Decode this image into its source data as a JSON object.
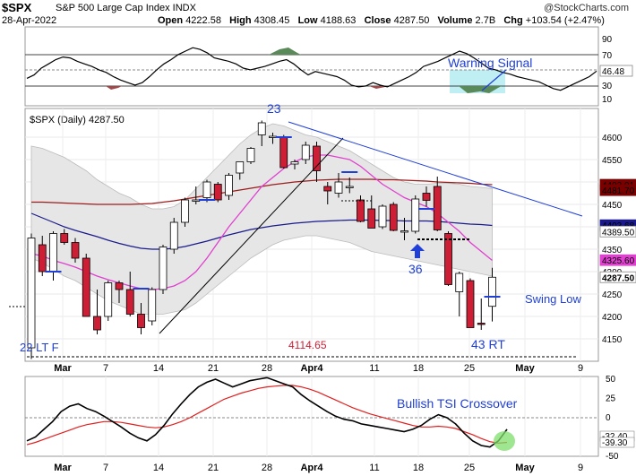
{
  "header": {
    "symbol": "$SPX",
    "name": "S&P 500 Large Cap Index INDX",
    "date": "28-Apr-2022",
    "open_label": "Open",
    "open": "4222.58",
    "high_label": "High",
    "high": "4308.45",
    "low_label": "Low",
    "low": "4188.63",
    "close_label": "Close",
    "close": "4287.50",
    "volume_label": "Volume",
    "volume": "2.7B",
    "chg_label": "Chg",
    "chg": "+103.54 (+2.47%)",
    "brand": "@StockCharts.com"
  },
  "chart_data": {
    "type": "candlestick",
    "title": "$SPX (Daily) 4287.50",
    "x_dates": [
      "Feb 28",
      "Mar 1",
      "Mar 2",
      "Mar 3",
      "Mar 4",
      "Mar 7",
      "Mar 8",
      "Mar 9",
      "Mar 10",
      "Mar 11",
      "Mar 14",
      "Mar 15",
      "Mar 16",
      "Mar 17",
      "Mar 18",
      "Mar 21",
      "Mar 22",
      "Mar 23",
      "Mar 24",
      "Mar 25",
      "Mar 28",
      "Mar 29",
      "Mar 30",
      "Mar 31",
      "Apr 1",
      "Apr 4",
      "Apr 5",
      "Apr 6",
      "Apr 7",
      "Apr 8",
      "Apr 11",
      "Apr 12",
      "Apr 13",
      "Apr 14",
      "Apr 18",
      "Apr 19",
      "Apr 20",
      "Apr 21",
      "Apr 22",
      "Apr 25",
      "Apr 26",
      "Apr 27",
      "Apr 28"
    ],
    "candles": [
      {
        "o": 4130,
        "h": 4385,
        "l": 4105,
        "c": 4375
      },
      {
        "o": 4360,
        "h": 4380,
        "l": 4290,
        "c": 4300
      },
      {
        "o": 4300,
        "h": 4390,
        "l": 4280,
        "c": 4385
      },
      {
        "o": 4385,
        "h": 4395,
        "l": 4360,
        "c": 4365
      },
      {
        "o": 4365,
        "h": 4375,
        "l": 4320,
        "c": 4330
      },
      {
        "o": 4330,
        "h": 4340,
        "l": 4200,
        "c": 4200
      },
      {
        "o": 4200,
        "h": 4260,
        "l": 4160,
        "c": 4170
      },
      {
        "o": 4200,
        "h": 4280,
        "l": 4190,
        "c": 4275
      },
      {
        "o": 4275,
        "h": 4280,
        "l": 4230,
        "c": 4260
      },
      {
        "o": 4260,
        "h": 4300,
        "l": 4200,
        "c": 4205
      },
      {
        "o": 4205,
        "h": 4230,
        "l": 4160,
        "c": 4175
      },
      {
        "o": 4190,
        "h": 4265,
        "l": 4180,
        "c": 4260
      },
      {
        "o": 4260,
        "h": 4360,
        "l": 4250,
        "c": 4355
      },
      {
        "o": 4350,
        "h": 4420,
        "l": 4340,
        "c": 4410
      },
      {
        "o": 4410,
        "h": 4465,
        "l": 4400,
        "c": 4460
      },
      {
        "o": 4460,
        "h": 4490,
        "l": 4450,
        "c": 4460
      },
      {
        "o": 4465,
        "h": 4505,
        "l": 4455,
        "c": 4500
      },
      {
        "o": 4495,
        "h": 4500,
        "l": 4455,
        "c": 4460
      },
      {
        "o": 4470,
        "h": 4520,
        "l": 4460,
        "c": 4515
      },
      {
        "o": 4520,
        "h": 4545,
        "l": 4505,
        "c": 4545
      },
      {
        "o": 4545,
        "h": 4578,
        "l": 4540,
        "c": 4575
      },
      {
        "o": 4605,
        "h": 4637,
        "l": 4580,
        "c": 4632
      },
      {
        "o": 4600,
        "h": 4610,
        "l": 4585,
        "c": 4602
      },
      {
        "o": 4600,
        "h": 4605,
        "l": 4530,
        "c": 4532
      },
      {
        "o": 4540,
        "h": 4550,
        "l": 4528,
        "c": 4545
      },
      {
        "o": 4550,
        "h": 4590,
        "l": 4540,
        "c": 4582
      },
      {
        "o": 4580,
        "h": 4590,
        "l": 4500,
        "c": 4525
      },
      {
        "o": 4490,
        "h": 4500,
        "l": 4450,
        "c": 4480
      },
      {
        "o": 4475,
        "h": 4520,
        "l": 4465,
        "c": 4500
      },
      {
        "o": 4490,
        "h": 4510,
        "l": 4475,
        "c": 4490
      },
      {
        "o": 4460,
        "h": 4470,
        "l": 4410,
        "c": 4412
      },
      {
        "o": 4440,
        "h": 4470,
        "l": 4400,
        "c": 4397
      },
      {
        "o": 4400,
        "h": 4450,
        "l": 4395,
        "c": 4446
      },
      {
        "o": 4450,
        "h": 4455,
        "l": 4390,
        "c": 4392
      },
      {
        "o": 4390,
        "h": 4420,
        "l": 4370,
        "c": 4391
      },
      {
        "o": 4390,
        "h": 4470,
        "l": 4385,
        "c": 4462
      },
      {
        "o": 4475,
        "h": 4490,
        "l": 4445,
        "c": 4459
      },
      {
        "o": 4490,
        "h": 4512,
        "l": 4390,
        "c": 4393
      },
      {
        "o": 4385,
        "h": 4390,
        "l": 4268,
        "c": 4271
      },
      {
        "o": 4255,
        "h": 4300,
        "l": 4200,
        "c": 4296
      },
      {
        "o": 4280,
        "h": 4285,
        "l": 4175,
        "c": 4175
      },
      {
        "o": 4185,
        "h": 4240,
        "l": 4170,
        "c": 4183
      },
      {
        "o": 4222.58,
        "h": 4308.45,
        "l": 4188.63,
        "c": 4287.5
      }
    ],
    "y_ticks": [
      "4150",
      "4200",
      "4250",
      "4300",
      "4350",
      "4400",
      "4450",
      "4500",
      "4550",
      "4600"
    ],
    "right_labels": [
      {
        "text": "4493.91",
        "bg": "#7a0000"
      },
      {
        "text": "4481.70",
        "bg": "#7a0000"
      },
      {
        "text": "4403.68",
        "bg": "#1a1a8c"
      },
      {
        "text": "4389.50",
        "bg": "#ffffff"
      },
      {
        "text": "4325.60",
        "bg": "#e040d0"
      },
      {
        "text": "4287.50",
        "bg": "#ffffff"
      }
    ],
    "x_axis_labels": [
      "Mar",
      "7",
      "14",
      "21",
      "28",
      "Apr4",
      "11",
      "18",
      "25",
      "May",
      "9"
    ],
    "annotations": {
      "high_label": "23",
      "low_label": "22 LT F",
      "level_label": "4114.65",
      "low2_label": "36",
      "low3_label": "43 RT",
      "swing_low_label": "Swing Low",
      "warning_label": "Warning Signal",
      "tsi_label": "Bullish TSI Crossover"
    },
    "rsi_panel": {
      "y_ticks": [
        "10",
        "30",
        "46.48",
        "70",
        "90"
      ],
      "current": "46.48"
    },
    "tsi_panel": {
      "y_ticks": [
        "50",
        "25",
        "0",
        "-25",
        "-50"
      ],
      "right_labels": [
        "-32.40",
        "-39.30"
      ]
    },
    "colors": {
      "up_fill": "#ffffff",
      "down_fill": "#cc1f35",
      "blue_text": "#1f3fd8",
      "ma_short": "#e040d0",
      "ma_mid": "#1a1a8c",
      "ma_long": "#9b1c1c",
      "band_fill": "#e6e6e6"
    }
  }
}
